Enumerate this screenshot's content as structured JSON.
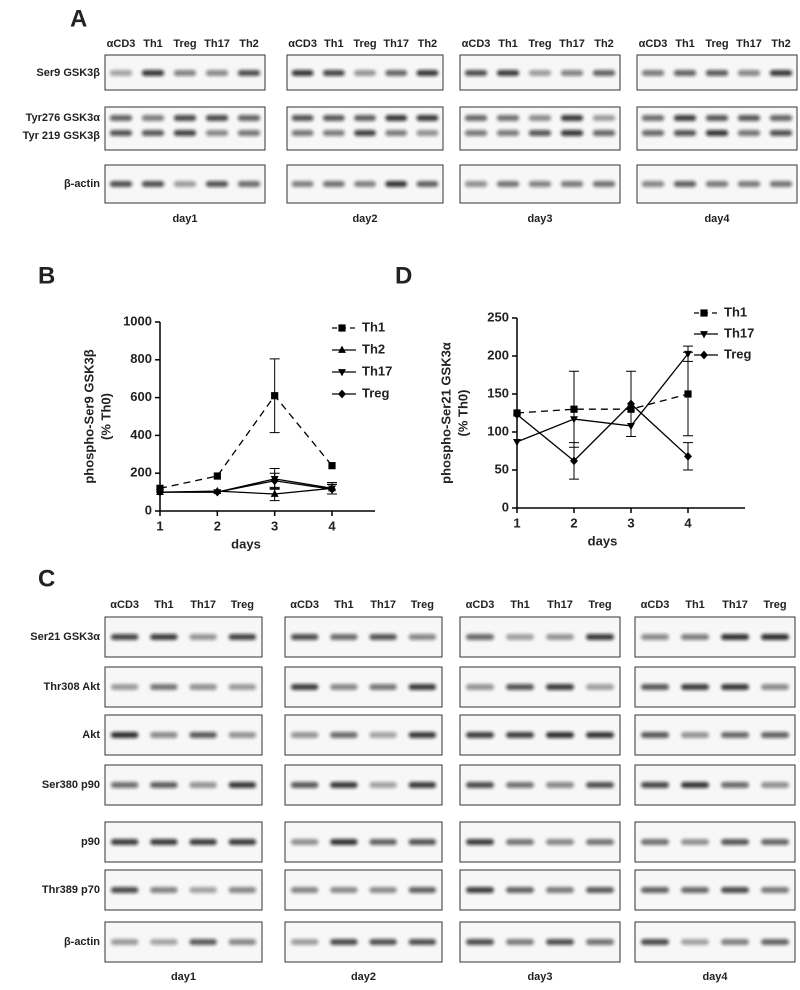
{
  "panel_labels": [
    "A",
    "B",
    "D",
    "C"
  ],
  "blot_a": {
    "lanes": [
      "αCD3",
      "Th1",
      "Treg",
      "Th17",
      "Th2"
    ],
    "rows": [
      [
        "Ser9 GSK3β"
      ],
      [
        "Tyr276 GSK3α",
        "Tyr 219 GSK3β"
      ],
      [
        "β-actin"
      ]
    ],
    "days": [
      "day1",
      "day2",
      "day3",
      "day4"
    ]
  },
  "chart_data": [
    {
      "type": "line",
      "ylabel": [
        "phospho-Ser9 GSK3β",
        "(% Th0)"
      ],
      "xlabel": "days",
      "x": [
        1,
        2,
        3,
        4
      ],
      "xlim": [
        1,
        4.75
      ],
      "xticks": [
        1,
        2,
        3,
        4
      ],
      "ylim": [
        0,
        1000
      ],
      "yticks": [
        0,
        200,
        400,
        600,
        800,
        1000
      ],
      "series": [
        {
          "name": "Th1",
          "color": "#000000",
          "marker": "square",
          "dashed": true,
          "values": [
            120,
            185,
            610,
            240
          ],
          "errors": [
            null,
            null,
            195,
            null
          ]
        },
        {
          "name": "Th2",
          "color": "#000000",
          "marker": "triangle-up",
          "dashed": false,
          "values": [
            100,
            105,
            90,
            120
          ],
          "errors": [
            null,
            null,
            35,
            30
          ]
        },
        {
          "name": "Th17",
          "color": "#000000",
          "marker": "triangle-down",
          "dashed": false,
          "values": [
            100,
            100,
            170,
            120
          ],
          "errors": [
            null,
            null,
            55,
            30
          ]
        },
        {
          "name": "Treg",
          "color": "#000000",
          "marker": "diamond",
          "dashed": false,
          "values": [
            100,
            100,
            160,
            115
          ],
          "errors": [
            null,
            null,
            40,
            25
          ]
        }
      ]
    },
    {
      "type": "line",
      "ylabel": [
        "phospho-Ser21 GSK3α",
        "(% Th0)"
      ],
      "xlabel": "days",
      "x": [
        1,
        2,
        3,
        4
      ],
      "xlim": [
        1,
        5
      ],
      "xticks": [
        1,
        2,
        3,
        4
      ],
      "ylim": [
        0,
        250
      ],
      "yticks": [
        0,
        50,
        100,
        150,
        200,
        250
      ],
      "series": [
        {
          "name": "Th1",
          "color": "#000000",
          "marker": "square",
          "dashed": true,
          "values": [
            125,
            130,
            130,
            150
          ],
          "errors": [
            null,
            50,
            null,
            55
          ]
        },
        {
          "name": "Th17",
          "color": "#000000",
          "marker": "triangle-down",
          "dashed": false,
          "values": [
            87,
            117,
            108,
            203
          ],
          "errors": [
            null,
            null,
            null,
            10
          ]
        },
        {
          "name": "Treg",
          "color": "#000000",
          "marker": "diamond",
          "dashed": false,
          "values": [
            123,
            62,
            137,
            68
          ],
          "errors": [
            null,
            24,
            43,
            18
          ]
        }
      ]
    }
  ],
  "blot_c": {
    "lanes": [
      "αCD3",
      "Th1",
      "Th17",
      "Treg"
    ],
    "rows": [
      "Ser21 GSK3α",
      "Thr308 Akt",
      "Akt",
      "Ser380 p90",
      "p90",
      "Thr389 p70",
      "β-actin"
    ],
    "days": [
      "day1",
      "day2",
      "day3",
      "day4"
    ]
  }
}
